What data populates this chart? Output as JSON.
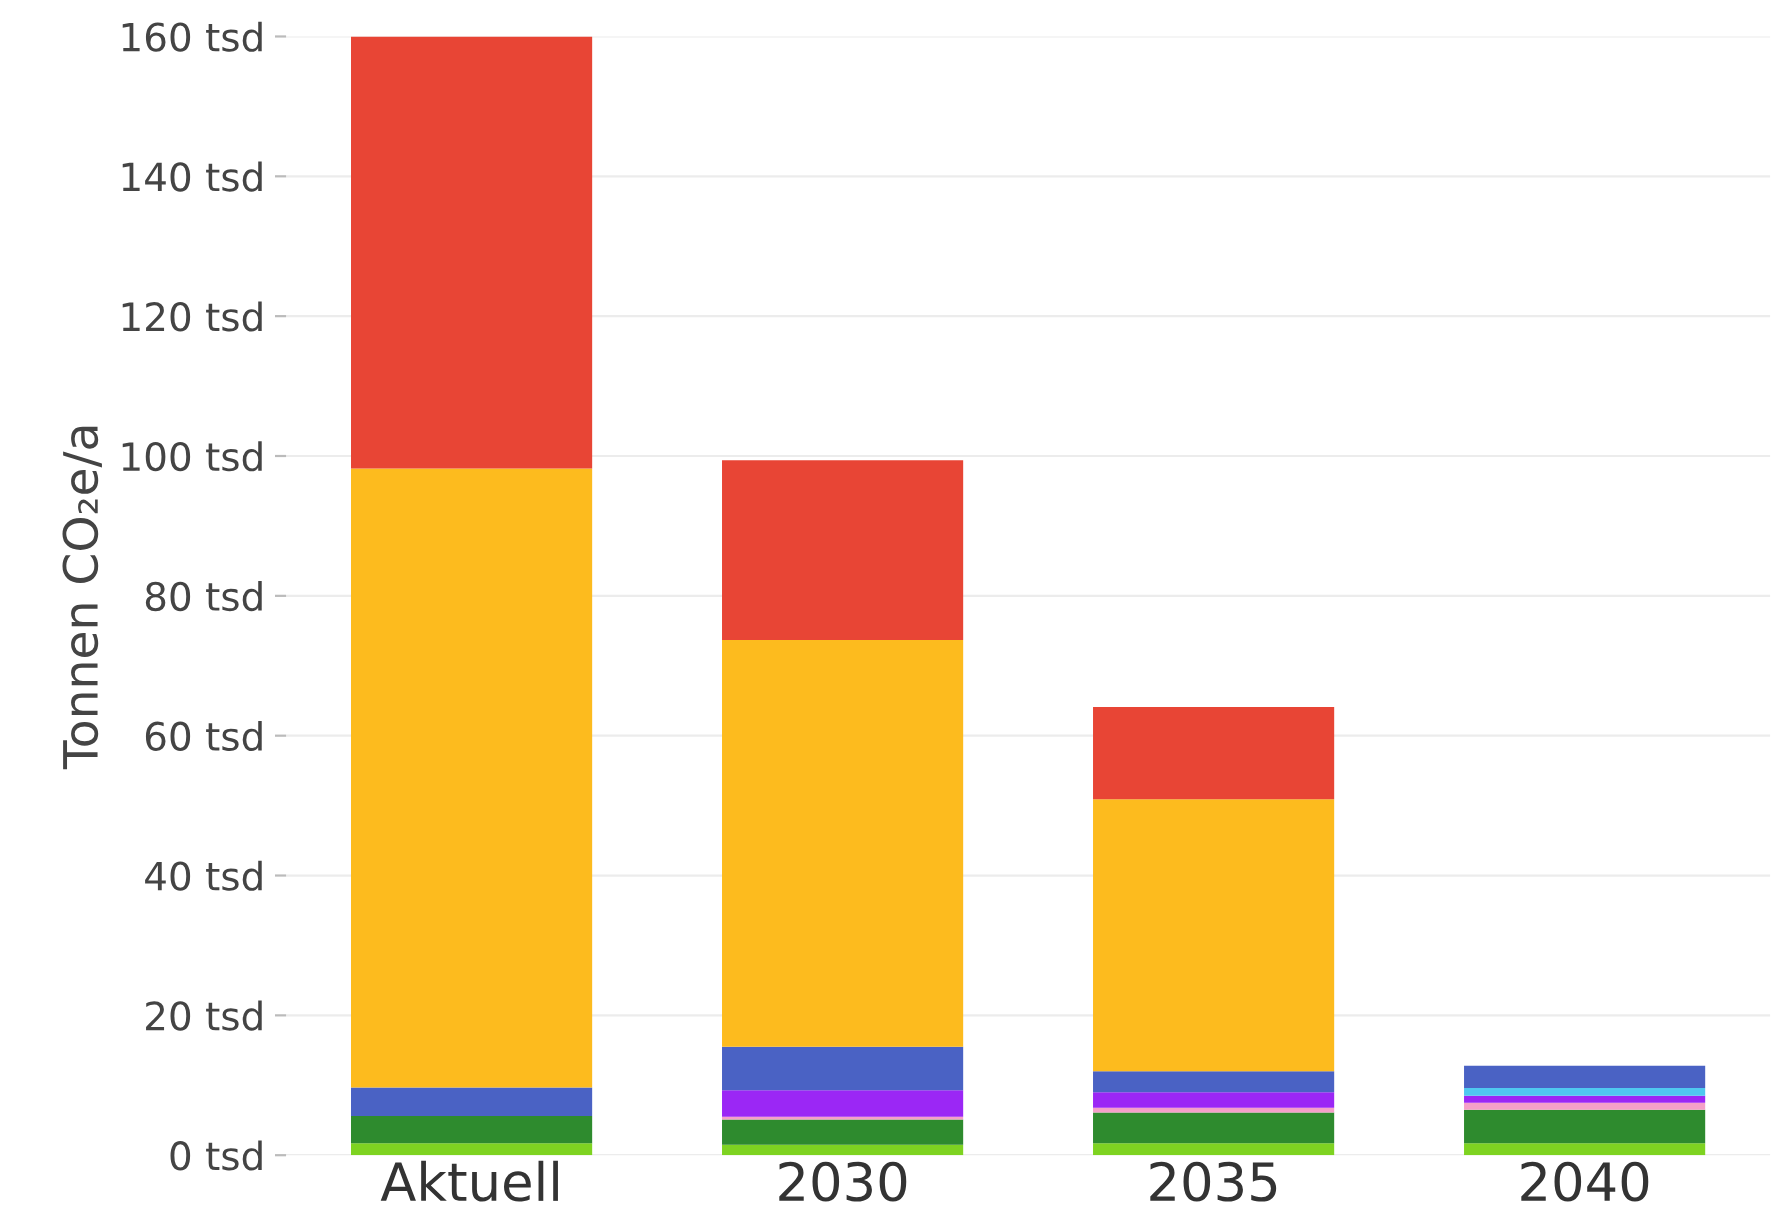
{
  "chart_data": {
    "type": "bar",
    "stacked": true,
    "ylabel": "Tonnen CO₂e/a",
    "categories": [
      "Aktuell",
      "2030",
      "2035",
      "2040"
    ],
    "series": [
      {
        "color": "#7ed321",
        "values": [
          1.7,
          1.5,
          1.7,
          1.7
        ]
      },
      {
        "color": "#2e8b2e",
        "values": [
          3.9,
          3.6,
          4.4,
          4.8
        ]
      },
      {
        "color": "#f5a0c8",
        "values": [
          0,
          0.4,
          0.7,
          1.0
        ]
      },
      {
        "color": "#9b27f5",
        "values": [
          0,
          3.8,
          2.2,
          1.0
        ]
      },
      {
        "color": "#4fc8f0",
        "values": [
          0,
          0,
          0,
          1.1
        ]
      },
      {
        "color": "#4a62c4",
        "values": [
          4.1,
          6.2,
          3.0,
          3.2
        ]
      },
      {
        "color": "#fdbb1e",
        "values": [
          88.5,
          58.2,
          38.9,
          0
        ]
      },
      {
        "color": "#e84535",
        "values": [
          61.8,
          25.7,
          13.2,
          0
        ]
      }
    ],
    "ylim": [
      0,
      160
    ],
    "yticks": [
      {
        "value": 0,
        "label": "0 tsd"
      },
      {
        "value": 20,
        "label": "20 tsd"
      },
      {
        "value": 40,
        "label": "40 tsd"
      },
      {
        "value": 60,
        "label": "60 tsd"
      },
      {
        "value": 80,
        "label": "80 tsd"
      },
      {
        "value": 100,
        "label": "100 tsd"
      },
      {
        "value": 120,
        "label": "120 tsd"
      },
      {
        "value": 140,
        "label": "140 tsd"
      },
      {
        "value": 160,
        "label": "160 tsd"
      }
    ],
    "grid": "y"
  }
}
